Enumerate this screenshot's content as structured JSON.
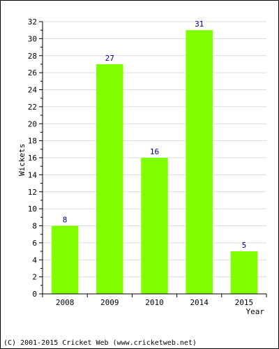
{
  "chart_data": {
    "type": "bar",
    "categories": [
      "2008",
      "2009",
      "2010",
      "2014",
      "2015"
    ],
    "values": [
      8,
      27,
      16,
      31,
      5
    ],
    "title": "",
    "xlabel": "Year",
    "ylabel": "Wickets",
    "ylim": [
      0,
      32
    ],
    "yticks": [
      0,
      2,
      4,
      6,
      8,
      10,
      12,
      14,
      16,
      18,
      20,
      22,
      24,
      26,
      28,
      30,
      32
    ],
    "grid": true,
    "data_labels": true,
    "colors": {
      "bar": "#80ff00",
      "data_label": "#000080",
      "grid": "#dcdcdc",
      "axis": "#000000"
    }
  },
  "footer": {
    "copyright": "(C) 2001-2015 Cricket Web (www.cricketweb.net)"
  }
}
